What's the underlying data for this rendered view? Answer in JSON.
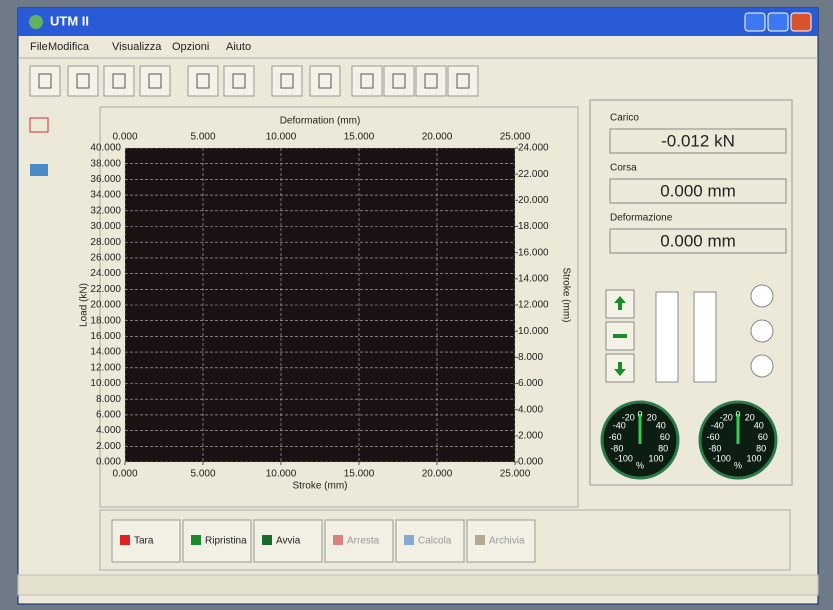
{
  "window": {
    "title": "UTM II"
  },
  "menu": [
    "File",
    "Modifica",
    "Visualizza",
    "Opzioni",
    "Aiuto"
  ],
  "plot": {
    "top_axis_title": "Deformation (mm)",
    "bottom_axis_title": "Stroke (mm)",
    "left_axis_title": "Load (kN)",
    "right_axis_title": "Stroke (mm)",
    "top_ticks": [
      {
        "value": 0,
        "label": "0.000"
      },
      {
        "value": 5,
        "label": "5.000"
      },
      {
        "value": 10,
        "label": "10.000"
      },
      {
        "value": 15,
        "label": "15.000"
      },
      {
        "value": 20,
        "label": "20.000"
      },
      {
        "value": 25,
        "label": "25.000"
      }
    ],
    "bottom_ticks": [
      {
        "value": 0,
        "label": "0.000"
      },
      {
        "value": 5,
        "label": "5.000"
      },
      {
        "value": 10,
        "label": "10.000"
      },
      {
        "value": 15,
        "label": "15.000"
      },
      {
        "value": 20,
        "label": "20.000"
      },
      {
        "value": 25,
        "label": "25.000"
      }
    ],
    "left_ticks": [
      {
        "value": 0,
        "label": "0.000"
      },
      {
        "value": 2,
        "label": "2.000"
      },
      {
        "value": 4,
        "label": "4.000"
      },
      {
        "value": 6,
        "label": "6.000"
      },
      {
        "value": 8,
        "label": "8.000"
      },
      {
        "value": 10,
        "label": "10.000"
      },
      {
        "value": 12,
        "label": "12.000"
      },
      {
        "value": 14,
        "label": "14.000"
      },
      {
        "value": 16,
        "label": "16.000"
      },
      {
        "value": 18,
        "label": "18.000"
      },
      {
        "value": 20,
        "label": "20.000"
      },
      {
        "value": 22,
        "label": "22.000"
      },
      {
        "value": 24,
        "label": "24.000"
      },
      {
        "value": 26,
        "label": "26.000"
      },
      {
        "value": 28,
        "label": "28.000"
      },
      {
        "value": 30,
        "label": "30.000"
      },
      {
        "value": 32,
        "label": "32.000"
      },
      {
        "value": 34,
        "label": "34.000"
      },
      {
        "value": 36,
        "label": "36.000"
      },
      {
        "value": 38,
        "label": "38.000"
      },
      {
        "value": 40,
        "label": "40.000"
      }
    ],
    "right_ticks": [
      {
        "value": 0,
        "label": "0.000"
      },
      {
        "value": 2,
        "label": "2.000"
      },
      {
        "value": 4,
        "label": "4.000"
      },
      {
        "value": 6,
        "label": "6.000"
      },
      {
        "value": 8,
        "label": "8.000"
      },
      {
        "value": 10,
        "label": "10.000"
      },
      {
        "value": 12,
        "label": "12.000"
      },
      {
        "value": 14,
        "label": "14.000"
      },
      {
        "value": 16,
        "label": "16.000"
      },
      {
        "value": 18,
        "label": "18.000"
      },
      {
        "value": 20,
        "label": "20.000"
      },
      {
        "value": 22,
        "label": "22.000"
      },
      {
        "value": 24,
        "label": "24.000"
      }
    ]
  },
  "readouts": [
    {
      "label": "Carico",
      "value": "-0.012 kN"
    },
    {
      "label": "Corsa",
      "value": "0.000 mm"
    },
    {
      "label": "Deformazione",
      "value": "0.000 mm"
    }
  ],
  "gauges": [
    {
      "scale": [
        -100,
        -80,
        -60,
        -40,
        -20,
        0,
        20,
        40,
        60,
        80,
        100
      ],
      "unit": "%"
    },
    {
      "scale": [
        -100,
        -80,
        -60,
        -40,
        -20,
        0,
        20,
        40,
        60,
        80,
        100
      ],
      "unit": "%"
    }
  ],
  "buttons": [
    {
      "label": "Tara",
      "enabled": true
    },
    {
      "label": "Ripristina",
      "enabled": true
    },
    {
      "label": "Avvia",
      "enabled": true
    },
    {
      "label": "Arresta",
      "enabled": false
    },
    {
      "label": "Calcola",
      "enabled": false
    },
    {
      "label": "Archivia",
      "enabled": false
    }
  ]
}
